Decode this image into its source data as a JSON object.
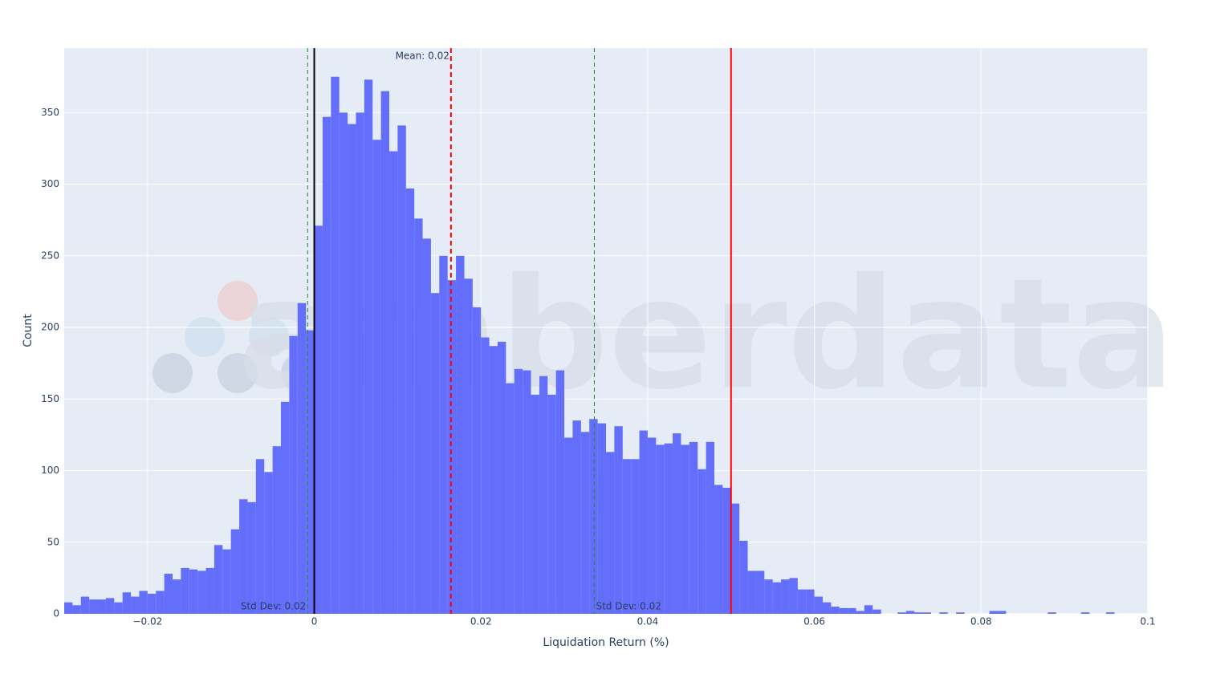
{
  "chart_data": {
    "type": "histogram",
    "x_label": "Liquidation Return (%)",
    "y_label": "Count",
    "watermark": "amberdata",
    "color": "#636efa",
    "background": "#e5ecf6",
    "grid": true,
    "bins": [
      -0.03,
      -0.029,
      -0.028,
      -0.027,
      -0.026,
      -0.025,
      -0.024,
      -0.023,
      -0.022,
      -0.021,
      -0.02,
      -0.019,
      -0.018,
      -0.017,
      -0.016,
      -0.015,
      -0.014,
      -0.013,
      -0.012,
      -0.011,
      -0.01,
      -0.009,
      -0.008,
      -0.007,
      -0.006,
      -0.005,
      -0.004,
      -0.003,
      -0.002,
      -0.001,
      0,
      0.001,
      0.002,
      0.003,
      0.004,
      0.005,
      0.006,
      0.007,
      0.008,
      0.009,
      0.01,
      0.011,
      0.012,
      0.013,
      0.014,
      0.015,
      0.016,
      0.017,
      0.018,
      0.019,
      0.02,
      0.021,
      0.022,
      0.023,
      0.024,
      0.025,
      0.026,
      0.027,
      0.028,
      0.029,
      0.03,
      0.031,
      0.032,
      0.033,
      0.034,
      0.035,
      0.036,
      0.037,
      0.038,
      0.039,
      0.04,
      0.041,
      0.042,
      0.043,
      0.044,
      0.045,
      0.046,
      0.047,
      0.048,
      0.049,
      0.05,
      0.051,
      0.052,
      0.053,
      0.054,
      0.055,
      0.056,
      0.057,
      0.058,
      0.059,
      0.06,
      0.061,
      0.062,
      0.063,
      0.064,
      0.065,
      0.066,
      0.067,
      0.068,
      0.069,
      0.07,
      0.071,
      0.072,
      0.073,
      0.074,
      0.075,
      0.076,
      0.077,
      0.078,
      0.079,
      0.08,
      0.081,
      0.082,
      0.083,
      0.084,
      0.085,
      0.086,
      0.087,
      0.088,
      0.089,
      0.09,
      0.091,
      0.092,
      0.093,
      0.094,
      0.095,
      0.096,
      0.097,
      0.098,
      0.099,
      0.1
    ],
    "values": [
      8,
      6,
      12,
      10,
      10,
      11,
      8,
      15,
      12,
      16,
      14,
      16,
      28,
      24,
      32,
      31,
      30,
      32,
      48,
      45,
      59,
      80,
      78,
      108,
      99,
      117,
      148,
      194,
      217,
      198,
      271,
      347,
      375,
      350,
      342,
      350,
      373,
      331,
      365,
      323,
      341,
      297,
      276,
      262,
      224,
      250,
      233,
      250,
      234,
      214,
      193,
      187,
      190,
      161,
      171,
      170,
      153,
      166,
      153,
      170,
      123,
      135,
      127,
      136,
      133,
      113,
      131,
      108,
      108,
      128,
      123,
      118,
      119,
      126,
      118,
      120,
      101,
      120,
      90,
      88,
      77,
      51,
      30,
      30,
      24,
      22,
      24,
      25,
      17,
      17,
      12,
      8,
      5,
      4,
      4,
      2,
      6,
      3,
      0,
      0,
      1,
      2,
      1,
      1,
      0,
      1,
      0,
      1,
      0,
      0,
      0,
      2,
      2,
      0,
      0,
      0,
      0,
      0,
      1,
      0,
      0,
      0,
      1,
      0,
      0,
      1,
      0,
      0,
      0,
      0
    ],
    "xlim": [
      -0.03,
      0.1
    ],
    "ylim": [
      0,
      395
    ],
    "xticks": [
      {
        "value": -0.02,
        "label": "−0.02"
      },
      0,
      0.02,
      0.04,
      0.06,
      0.08,
      0.1
    ],
    "yticks": [
      0,
      50,
      100,
      150,
      200,
      250,
      300,
      350
    ],
    "vlines": [
      {
        "x": 0,
        "color": "#000000",
        "dash": "solid"
      },
      {
        "x": 0.0164,
        "color": "#ff0000",
        "dash": "dash",
        "label": "Mean: 0.02",
        "label_position": "top left"
      },
      {
        "x": -0.0008,
        "color": "#228b22",
        "dash": "dash",
        "label": "Std Dev: 0.02",
        "label_position": "bottom left"
      },
      {
        "x": 0.0336,
        "color": "#228b22",
        "dash": "dash",
        "label": "Std Dev: 0.02",
        "label_position": "bottom right"
      },
      {
        "x": 0.05,
        "color": "#ff0000",
        "dash": "solid"
      }
    ]
  }
}
